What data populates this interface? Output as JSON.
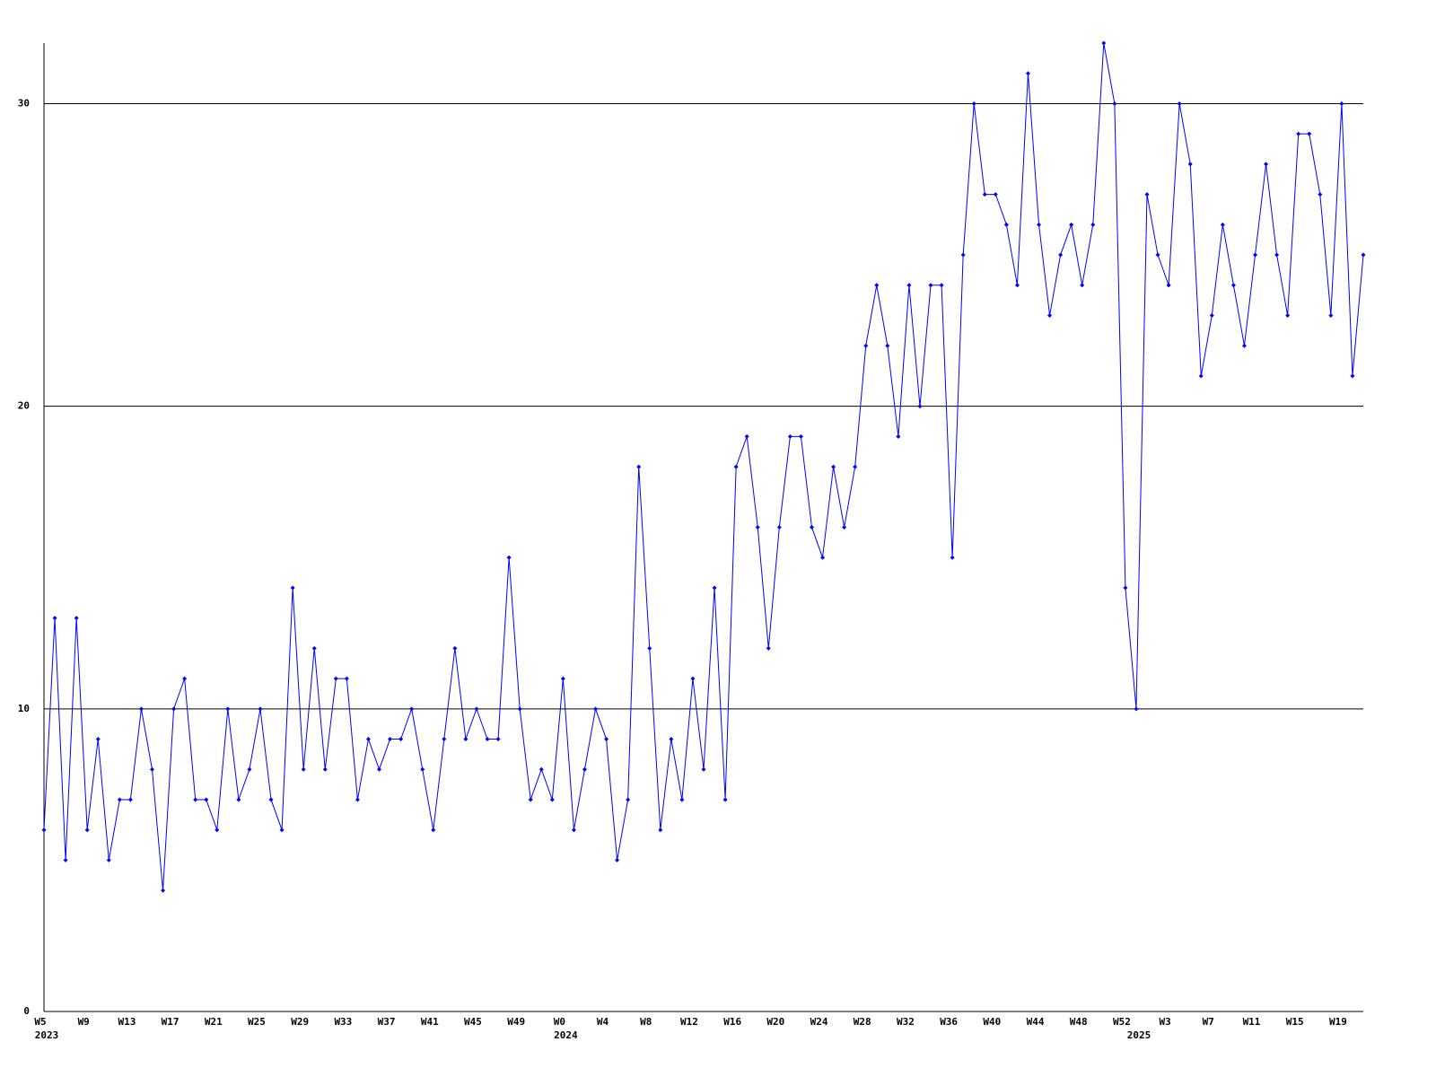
{
  "chart_data": {
    "type": "line",
    "categories": [
      "W5",
      null,
      null,
      null,
      "W9",
      null,
      null,
      null,
      "W13",
      null,
      null,
      null,
      "W17",
      null,
      null,
      null,
      "W21",
      null,
      null,
      null,
      "W25",
      null,
      null,
      null,
      "W29",
      null,
      null,
      null,
      "W33",
      null,
      null,
      null,
      "W37",
      null,
      null,
      null,
      "W41",
      null,
      null,
      null,
      "W45",
      null,
      null,
      null,
      "W49",
      null,
      null,
      null,
      "W0",
      null,
      null,
      null,
      "W4",
      null,
      null,
      null,
      "W8",
      null,
      null,
      null,
      "W12",
      null,
      null,
      null,
      "W16",
      null,
      null,
      null,
      "W20",
      null,
      null,
      null,
      "W24",
      null,
      null,
      null,
      "W28",
      null,
      null,
      null,
      "W32",
      null,
      null,
      null,
      "W36",
      null,
      null,
      null,
      "W40",
      null,
      null,
      null,
      "W44",
      null,
      null,
      null,
      "W48",
      null,
      null,
      null,
      "W52",
      null,
      null,
      null,
      "W3",
      null,
      null,
      null,
      "W7",
      null,
      null,
      null,
      "W11",
      null,
      null,
      null,
      "W15",
      null,
      null,
      null,
      "W19",
      null,
      null
    ],
    "years": [
      "2023",
      null,
      null,
      null,
      null,
      null,
      null,
      null,
      null,
      null,
      null,
      null,
      null,
      null,
      null,
      null,
      null,
      null,
      null,
      null,
      null,
      null,
      null,
      null,
      null,
      null,
      null,
      null,
      null,
      null,
      null,
      null,
      null,
      null,
      null,
      null,
      null,
      null,
      null,
      null,
      null,
      null,
      null,
      null,
      null,
      null,
      null,
      null,
      "2024",
      null,
      null,
      null,
      null,
      null,
      null,
      null,
      null,
      null,
      null,
      null,
      null,
      null,
      null,
      null,
      null,
      null,
      null,
      null,
      null,
      null,
      null,
      null,
      null,
      null,
      null,
      null,
      null,
      null,
      null,
      null,
      null,
      null,
      null,
      null,
      null,
      null,
      null,
      null,
      null,
      null,
      null,
      null,
      null,
      null,
      null,
      null,
      null,
      null,
      null,
      null,
      null,
      "2025",
      null,
      null,
      null,
      null,
      null,
      null,
      null,
      null,
      null,
      null,
      null,
      null,
      null,
      null,
      null,
      null,
      null,
      null,
      null,
      null,
      null
    ],
    "series": [
      {
        "color": "#0000ff",
        "values": [
          6,
          13,
          5,
          13,
          6,
          9,
          5,
          7,
          7,
          10,
          8,
          4,
          10,
          11,
          7,
          7,
          6,
          10,
          7,
          8,
          10,
          7,
          6,
          14,
          8,
          12,
          8,
          11,
          11,
          7,
          9,
          8,
          9,
          9,
          10,
          8,
          6,
          9,
          12,
          9,
          10,
          9,
          9,
          15,
          10,
          7,
          8,
          7,
          11,
          6,
          8,
          10,
          9,
          5,
          7,
          18,
          12,
          6,
          9,
          7,
          11,
          8,
          14,
          7,
          18,
          19,
          16,
          12,
          16,
          19,
          19,
          16,
          15,
          18,
          16,
          18,
          22,
          24,
          22,
          19,
          24,
          20,
          24,
          24,
          15,
          25,
          30,
          27,
          27,
          26,
          24,
          31,
          26,
          23,
          25,
          26,
          24,
          26,
          32,
          30,
          14,
          10,
          27,
          25,
          24,
          30,
          28,
          21,
          23,
          26,
          24,
          22,
          25,
          28,
          25,
          23,
          29,
          29,
          27,
          23,
          30,
          21,
          25
        ]
      }
    ],
    "ylim": [
      0,
      32
    ],
    "yticks": [
      0,
      10,
      20,
      30
    ],
    "grid": true
  }
}
